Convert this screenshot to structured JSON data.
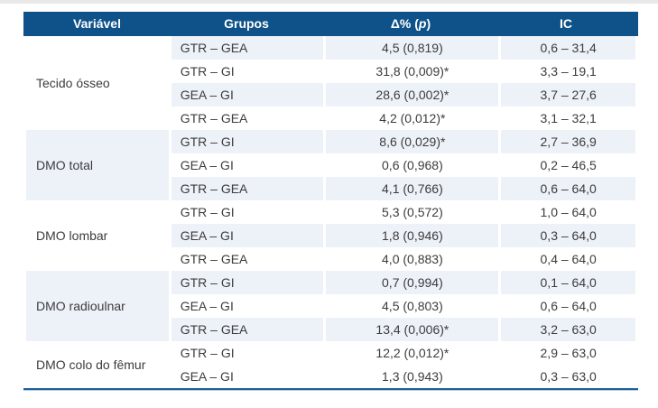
{
  "table": {
    "colors": {
      "header_bg": "#0e5289",
      "row_shade": "#edf1f8",
      "text": "#3c3c3c",
      "bottom_rule_dark": "#1f5f99",
      "bottom_rule_light": "#b7d2e9"
    },
    "headers": {
      "variavel": "Variável",
      "grupos": "Grupos",
      "delta_prefix": "Δ% (",
      "delta_p": "p",
      "delta_suffix": ")",
      "ic": "IC"
    },
    "groups": [
      {
        "variable": "Tecido ósseo",
        "shaded": false,
        "rows": [
          {
            "grupos": "GTR – GEA",
            "delta": "4,5 (0,819)",
            "ic": "0,6 – 31,4",
            "shaded": true
          },
          {
            "grupos": "GTR – GI",
            "delta": "31,8 (0,009)*",
            "ic": "3,3 – 19,1",
            "shaded": false
          },
          {
            "grupos": "GEA – GI",
            "delta": "28,6 (0,002)*",
            "ic": "3,7 – 27,6",
            "shaded": true
          },
          {
            "grupos": "GTR – GEA",
            "delta": "4,2 (0,012)*",
            "ic": "3,1 – 32,1",
            "shaded": false
          }
        ]
      },
      {
        "variable": "DMO total",
        "shaded": true,
        "rows": [
          {
            "grupos": "GTR – GI",
            "delta": "8,6 (0,029)*",
            "ic": "2,7 – 36,9",
            "shaded": true
          },
          {
            "grupos": "GEA – GI",
            "delta": "0,6 (0,968)",
            "ic": "0,2 – 46,5",
            "shaded": false
          },
          {
            "grupos": "GTR – GEA",
            "delta": "4,1 (0,766)",
            "ic": "0,6 – 64,0",
            "shaded": true
          }
        ]
      },
      {
        "variable": "DMO lombar",
        "shaded": false,
        "rows": [
          {
            "grupos": "GTR – GI",
            "delta": "5,3 (0,572)",
            "ic": "1,0 – 64,0",
            "shaded": false
          },
          {
            "grupos": "GEA – GI",
            "delta": "1,8 (0,946)",
            "ic": "0,3 – 64,0",
            "shaded": true
          },
          {
            "grupos": "GTR – GEA",
            "delta": "4,0 (0,883)",
            "ic": "0,4 – 64,0",
            "shaded": false
          }
        ]
      },
      {
        "variable": "DMO radioulnar",
        "shaded": true,
        "rows": [
          {
            "grupos": "GTR – GI",
            "delta": "0,7 (0,994)",
            "ic": "0,1 – 64,0",
            "shaded": true
          },
          {
            "grupos": "GEA – GI",
            "delta": "4,5 (0,803)",
            "ic": "0,6 – 64,0",
            "shaded": false
          },
          {
            "grupos": "GTR – GEA",
            "delta": "13,4 (0,006)*",
            "ic": "3,2 – 63,0",
            "shaded": true
          }
        ]
      },
      {
        "variable": "DMO colo do fêmur",
        "shaded": false,
        "rows": [
          {
            "grupos": "GTR – GI",
            "delta": "12,2 (0,012)*",
            "ic": "2,9 – 63,0",
            "shaded": false
          },
          {
            "grupos": "GEA – GI",
            "delta": "1,3 (0,943)",
            "ic": "0,3 – 63,0",
            "shaded": false
          }
        ]
      }
    ]
  }
}
